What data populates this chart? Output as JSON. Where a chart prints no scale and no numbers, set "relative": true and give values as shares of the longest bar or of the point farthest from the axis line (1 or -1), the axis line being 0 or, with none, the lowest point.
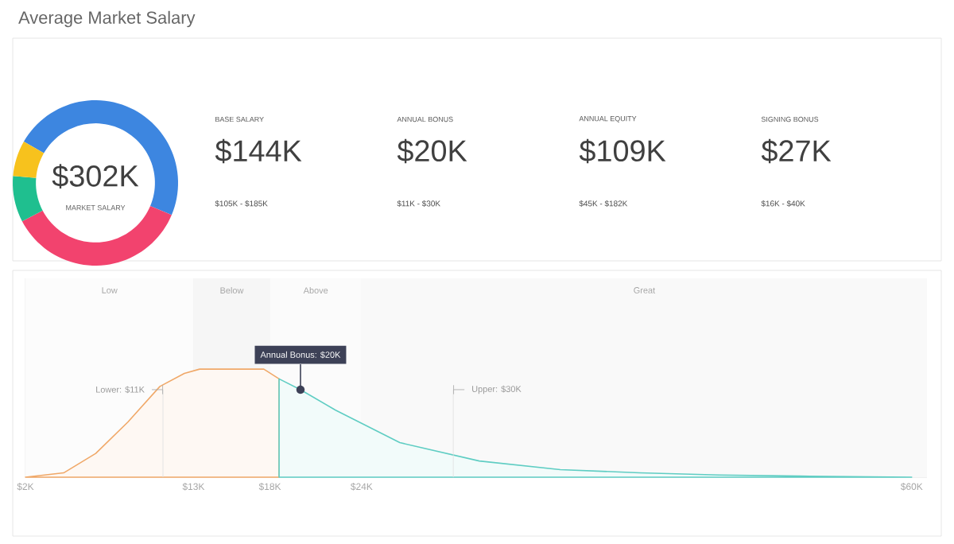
{
  "chart_data": [
    {
      "type": "donut",
      "title": "Average Market Salary",
      "categories": [
        null,
        null,
        null,
        null
      ],
      "values": [
        48,
        36,
        9,
        7
      ],
      "colors": [
        "#3d86e0",
        "#f2436e",
        "#1fbf8f",
        "#f7c21d"
      ],
      "annotations": [
        "$302K",
        "MARKET SALARY"
      ]
    },
    {
      "type": "other",
      "annotations": [
        "BASE SALARY",
        "$144K",
        "$105K - $185K",
        "ANNUAL BONUS",
        "$20K",
        "$11K - $30K",
        "ANNUAL EQUITY",
        "$109K",
        "$45K - $182K",
        "SIGNING BONUS",
        "$27K",
        "$16K - $40K"
      ]
    },
    {
      "type": "area",
      "relative": true,
      "grid": "x",
      "xlim": [
        2,
        61
      ],
      "xticks": [
        {
          "value": 2,
          "label": "$2K"
        },
        {
          "value": 13,
          "label": "$13K"
        },
        {
          "value": 18,
          "label": "$18K"
        },
        {
          "value": 24,
          "label": "$24K"
        },
        {
          "value": 60,
          "label": "$60K"
        }
      ],
      "series": [
        {
          "color": "#f0a868",
          "x": [
            2,
            4.5,
            6.6,
            8.7,
            10.8,
            12.4,
            13.4,
            17.6,
            18.6
          ],
          "values": [
            0,
            0.04,
            0.22,
            0.51,
            0.84,
            0.96,
            1,
            1,
            0.91
          ]
        },
        {
          "color": "#5fcdc3",
          "x": [
            18.6,
            20,
            22.3,
            26.5,
            31.7,
            37,
            42.2,
            47.4,
            52.7,
            60
          ],
          "values": [
            0.91,
            0.81,
            0.62,
            0.32,
            0.15,
            0.07,
            0.04,
            0.02,
            0.01,
            0
          ]
        }
      ],
      "bands": [
        {
          "axis": "x",
          "from": 2,
          "to": 13,
          "label": "Low"
        },
        {
          "axis": "x",
          "from": 13,
          "to": 18,
          "label": "Below"
        },
        {
          "axis": "x",
          "from": 18,
          "to": 24,
          "label": "Above"
        },
        {
          "axis": "x",
          "from": 24,
          "to": 61,
          "label": "Great"
        }
      ],
      "ref_lines": [
        {
          "axis": "x",
          "value": 11,
          "label": "Lower: $11K"
        },
        {
          "axis": "x",
          "value": 30,
          "label": "Upper: $30K"
        }
      ],
      "annotations": [
        {
          "text": "Annual Bonus: $20K",
          "x": 20,
          "y": 0.81
        }
      ]
    }
  ]
}
